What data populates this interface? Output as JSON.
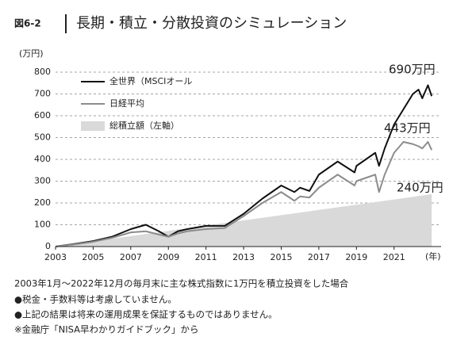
{
  "figure_label": "図6-2",
  "title": "長期・積立・分散投資のシミュレーション",
  "notes": [
    "2003年1月～2022年12月の毎月末に主な株式指数に1万円を積立投資をした場合",
    "●税金・手数料等は考慮していません。",
    "●上記の結果は将来の運用成果を保証するものではありません。",
    "※金融庁「NISA早わかりガイドブック」から"
  ],
  "chart_data": {
    "type": "line",
    "y_unit": "(万円)",
    "x_unit": "(年)",
    "x": [
      2003,
      2004,
      2005,
      2006,
      2007,
      2007.8,
      2008.5,
      2009,
      2009.5,
      2010,
      2011,
      2012,
      2013,
      2014,
      2015,
      2015.7,
      2016,
      2016.5,
      2017,
      2018,
      2018.9,
      2019,
      2020,
      2020.2,
      2020.5,
      2021,
      2021.5,
      2022,
      2022.3,
      2022.5,
      2022.8,
      2023
    ],
    "series": [
      {
        "name": "全世界（MSCIオール",
        "color": "#111111",
        "style": "line",
        "values": [
          0,
          12,
          25,
          45,
          80,
          100,
          70,
          45,
          70,
          80,
          95,
          95,
          150,
          220,
          280,
          250,
          270,
          255,
          330,
          390,
          340,
          370,
          430,
          370,
          450,
          560,
          630,
          700,
          720,
          680,
          740,
          690
        ]
      },
      {
        "name": "日経平均",
        "color": "#8c8c8c",
        "style": "line",
        "values": [
          0,
          10,
          22,
          40,
          65,
          70,
          55,
          45,
          60,
          70,
          80,
          85,
          140,
          200,
          250,
          210,
          230,
          225,
          270,
          330,
          280,
          300,
          330,
          250,
          330,
          430,
          480,
          470,
          460,
          450,
          480,
          443
        ]
      },
      {
        "name": "総積立額（左軸）",
        "color": "#d9d9d9",
        "style": "area",
        "values": [
          0,
          12,
          24,
          36,
          48,
          57.6,
          66,
          72,
          78,
          84,
          96,
          108,
          120,
          132,
          144,
          152.4,
          156,
          162,
          168,
          180,
          190.8,
          192,
          204,
          206.4,
          210,
          216,
          222,
          228,
          231.6,
          234,
          237.6,
          240
        ]
      }
    ],
    "annotations": [
      "690万円",
      "443万円",
      "240万円"
    ],
    "xlim": [
      2003,
      2023.5
    ],
    "xticks": [
      2003,
      2005,
      2007,
      2009,
      2011,
      2013,
      2015,
      2017,
      2019,
      2021
    ],
    "ylim": [
      0,
      800
    ],
    "yticks": [
      0,
      100,
      200,
      300,
      400,
      500,
      600,
      700,
      800
    ],
    "grid": true,
    "legend": "top-left"
  }
}
